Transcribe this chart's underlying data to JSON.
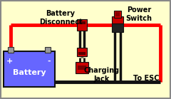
{
  "bg_color": "#FFFFCC",
  "border_color": "#888888",
  "battery_color": "#6666FF",
  "battery_text": "Battery",
  "battery_plus": "+",
  "battery_minus": "-",
  "wire_red": "#FF0000",
  "wire_black": "#111111",
  "connector_red": "#CC0000",
  "connector_dark": "#222222",
  "label_battery_disconnect": "Battery\nDisconnect",
  "label_power_switch": "Power\nSwitch",
  "label_charging_jack": "Charging\nJack",
  "label_to_esc": "To ESC",
  "font_size": 7,
  "title_font_size": 7
}
